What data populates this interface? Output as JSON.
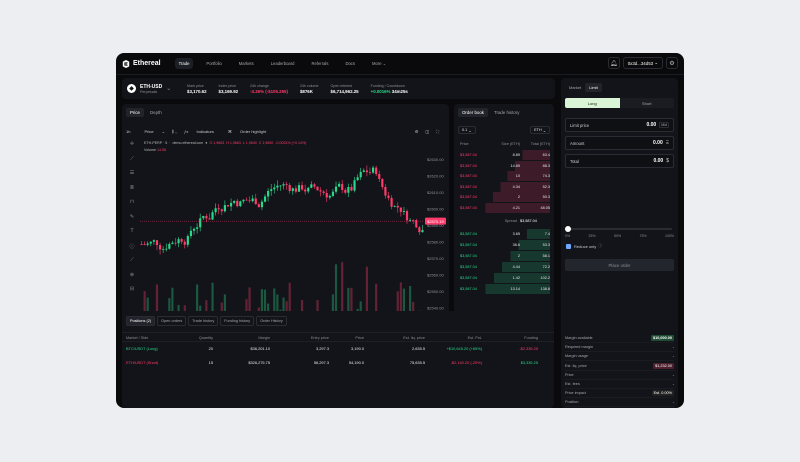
{
  "brand": {
    "name": "Ethereal"
  },
  "nav": [
    "Trade",
    "Portfolio",
    "Markets",
    "Leaderboard",
    "Referrals",
    "Docs",
    "More"
  ],
  "wallet": "0x3d...34d53",
  "ticker": {
    "market": "ETH-USD",
    "sub": "Perpetuals",
    "stats": [
      {
        "label": "Mark price",
        "value": "$3,170.62"
      },
      {
        "label": "Index price",
        "value": "$3,169.92"
      },
      {
        "label": "24h change",
        "value": "-3.26% (-$105.255)"
      },
      {
        "label": "24h volume",
        "value": "$876K"
      },
      {
        "label": "Open interest",
        "value": "$6,714,962.25"
      },
      {
        "label": "Funding / Countdown",
        "value": "+0.0016%",
        "value2": "34m25s"
      }
    ]
  },
  "chart_tabs": [
    "Price",
    "Depth"
  ],
  "chart_toolbar": {
    "interval": "1h",
    "style": "Price",
    "indicators": "Indicators",
    "order_highlight": "Order highlight"
  },
  "chart_legend": {
    "pair": "ETH-PERP · 5",
    "source": "demo.ethereal.com",
    "o": "O 1,9663",
    "h": "H 1,9663",
    "l": "L 1,9640",
    "c": "C 1,9650",
    "chg": "-0.0031% (+0.14%)",
    "volume_label": "Volume",
    "volume_value": "14.58"
  },
  "chart_data": {
    "type": "candlestick",
    "price_ticks": [
      "$2630.00",
      "$2620.00",
      "$2610.00",
      "$2600.00",
      "$2590.00",
      "$2580.00",
      "$2570.00",
      "$2560.00",
      "$2550.00",
      "$2540.00",
      "$2530.00"
    ],
    "current_price": "$2570.19",
    "time_ticks": [
      "12:00",
      "12:00",
      "25",
      "27",
      "12:00",
      "12:00",
      "12:00",
      "12:00",
      "12:00",
      "12:00",
      "31",
      "12:00"
    ],
    "ylim": [
      2530,
      2630
    ]
  },
  "orderbook": {
    "tabs": [
      "Order book",
      "Trade history"
    ],
    "group": "0.1",
    "unit": "ETH",
    "headers": [
      "Price",
      "Size (ETH)",
      "Total (ETH)"
    ],
    "asks": [
      {
        "price": "$3,587.04",
        "size": "8.89",
        "total": "63.4"
      },
      {
        "price": "$3,587.04",
        "size": "14.89",
        "total": "88.3"
      },
      {
        "price": "$3,587.04",
        "size": "10",
        "total": "74.3"
      },
      {
        "price": "$3,587.04",
        "size": "4.34",
        "total": "52.3"
      },
      {
        "price": "$3,587.04",
        "size": "2",
        "total": "50.3"
      },
      {
        "price": "$3,587.04",
        "size": "4.21",
        "total": "48.05"
      }
    ],
    "spread_label": "Spread",
    "spread_value": "$3,587.04",
    "bids": [
      {
        "price": "$3,587.04",
        "size": "3.65",
        "total": "7.4"
      },
      {
        "price": "$3,587.04",
        "size": "36.6",
        "total": "53.3"
      },
      {
        "price": "$3,587.04",
        "size": "2",
        "total": "58.1"
      },
      {
        "price": "$3,587.04",
        "size": "4.44",
        "total": "72.2"
      },
      {
        "price": "$3,587.04",
        "size": "1.42",
        "total": "102.2"
      },
      {
        "price": "$3,587.04",
        "size": "13.14",
        "total": "138.8"
      }
    ]
  },
  "positions": {
    "tabs": [
      "Positions (2)",
      "Open orders",
      "Trade history",
      "Funding history",
      "Order History"
    ],
    "headers": [
      "Market / Side",
      "Quantity",
      "Margin",
      "Entry price",
      "Price",
      "Est. liq. price",
      "Est. PnL",
      "Funding"
    ],
    "rows": [
      {
        "market": "BTC/USDT (Long)",
        "qty": "20",
        "margin": "$36,201.10",
        "entry": "3,297.3",
        "price": "3,190.0",
        "liq": "2,635.5",
        "pnl": "+$10,645.20 (+65%)",
        "funding": "-$2,335.25"
      },
      {
        "market": "ETH/USDT (Short)",
        "qty": "15",
        "margin": "$326,275.75",
        "entry": "56,297.3",
        "price": "54,190.0",
        "liq": "75,635.5",
        "pnl": "-$2,140.20 (-25%)",
        "funding": "$3,335.25"
      }
    ]
  },
  "order_form": {
    "types": [
      "Market",
      "Limit"
    ],
    "sides": [
      "Long",
      "Short"
    ],
    "limit_price_label": "Limit price",
    "limit_price_value": "0.00",
    "limit_unit": "Mid",
    "amount_label": "Amount",
    "amount_value": "0.00",
    "total_label": "Total",
    "total_value": "0.00",
    "slider": [
      "0%",
      "25%",
      "50%",
      "75%",
      "100%"
    ],
    "reduce_only": "Reduce only",
    "place_button": "Place order",
    "summary": [
      {
        "label": "Margin available",
        "value": "$10,000.00",
        "style": "green"
      },
      {
        "label": "Required margin",
        "value": "-",
        "style": "plain"
      },
      {
        "label": "Margin usage",
        "value": "-",
        "style": "plain"
      },
      {
        "label": "Est. liq. price",
        "value": "$1,232.00",
        "style": "red"
      },
      {
        "label": "Price",
        "value": "-",
        "style": "plain"
      },
      {
        "label": "Est. fees",
        "value": "-",
        "style": "plain"
      },
      {
        "label": "Price impact",
        "value": "Est. 0.00%",
        "style": "pill"
      },
      {
        "label": "Position",
        "value": "-",
        "style": "plain"
      }
    ]
  }
}
